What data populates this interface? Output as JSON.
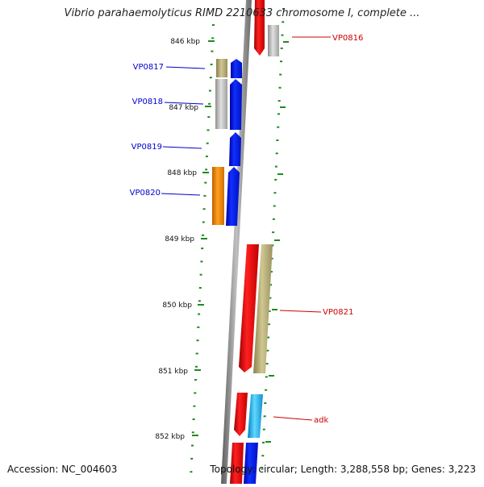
{
  "title": "Vibrio parahaemolyticus RIMD 2210633 chromosome I, complete ...",
  "footer": {
    "accession": "Accession: NC_004603",
    "summary": "Topology: circular; Length: 3,288,558 bp; Genes: 3,223"
  },
  "ruler_ticks": [
    "846 kbp",
    "847 kbp",
    "848 kbp",
    "849 kbp",
    "850 kbp",
    "851 kbp",
    "852 kbp"
  ],
  "gene_labels": {
    "VP0816": "VP0816",
    "VP0817": "VP0817",
    "VP0818": "VP0818",
    "VP0819": "VP0819",
    "VP0820": "VP0820",
    "VP0821": "VP0821",
    "adk": "adk"
  },
  "colors": {
    "backbone": "#808080",
    "tick": "#1f8a1f",
    "forward_label": "#0000cc",
    "reverse_label": "#cc0000",
    "blue": "#0018e8",
    "red": "#e01010",
    "grey": "#b8b8b8",
    "olive": "#b0a870",
    "orange": "#f08c10",
    "cyan": "#20b8e8"
  }
}
